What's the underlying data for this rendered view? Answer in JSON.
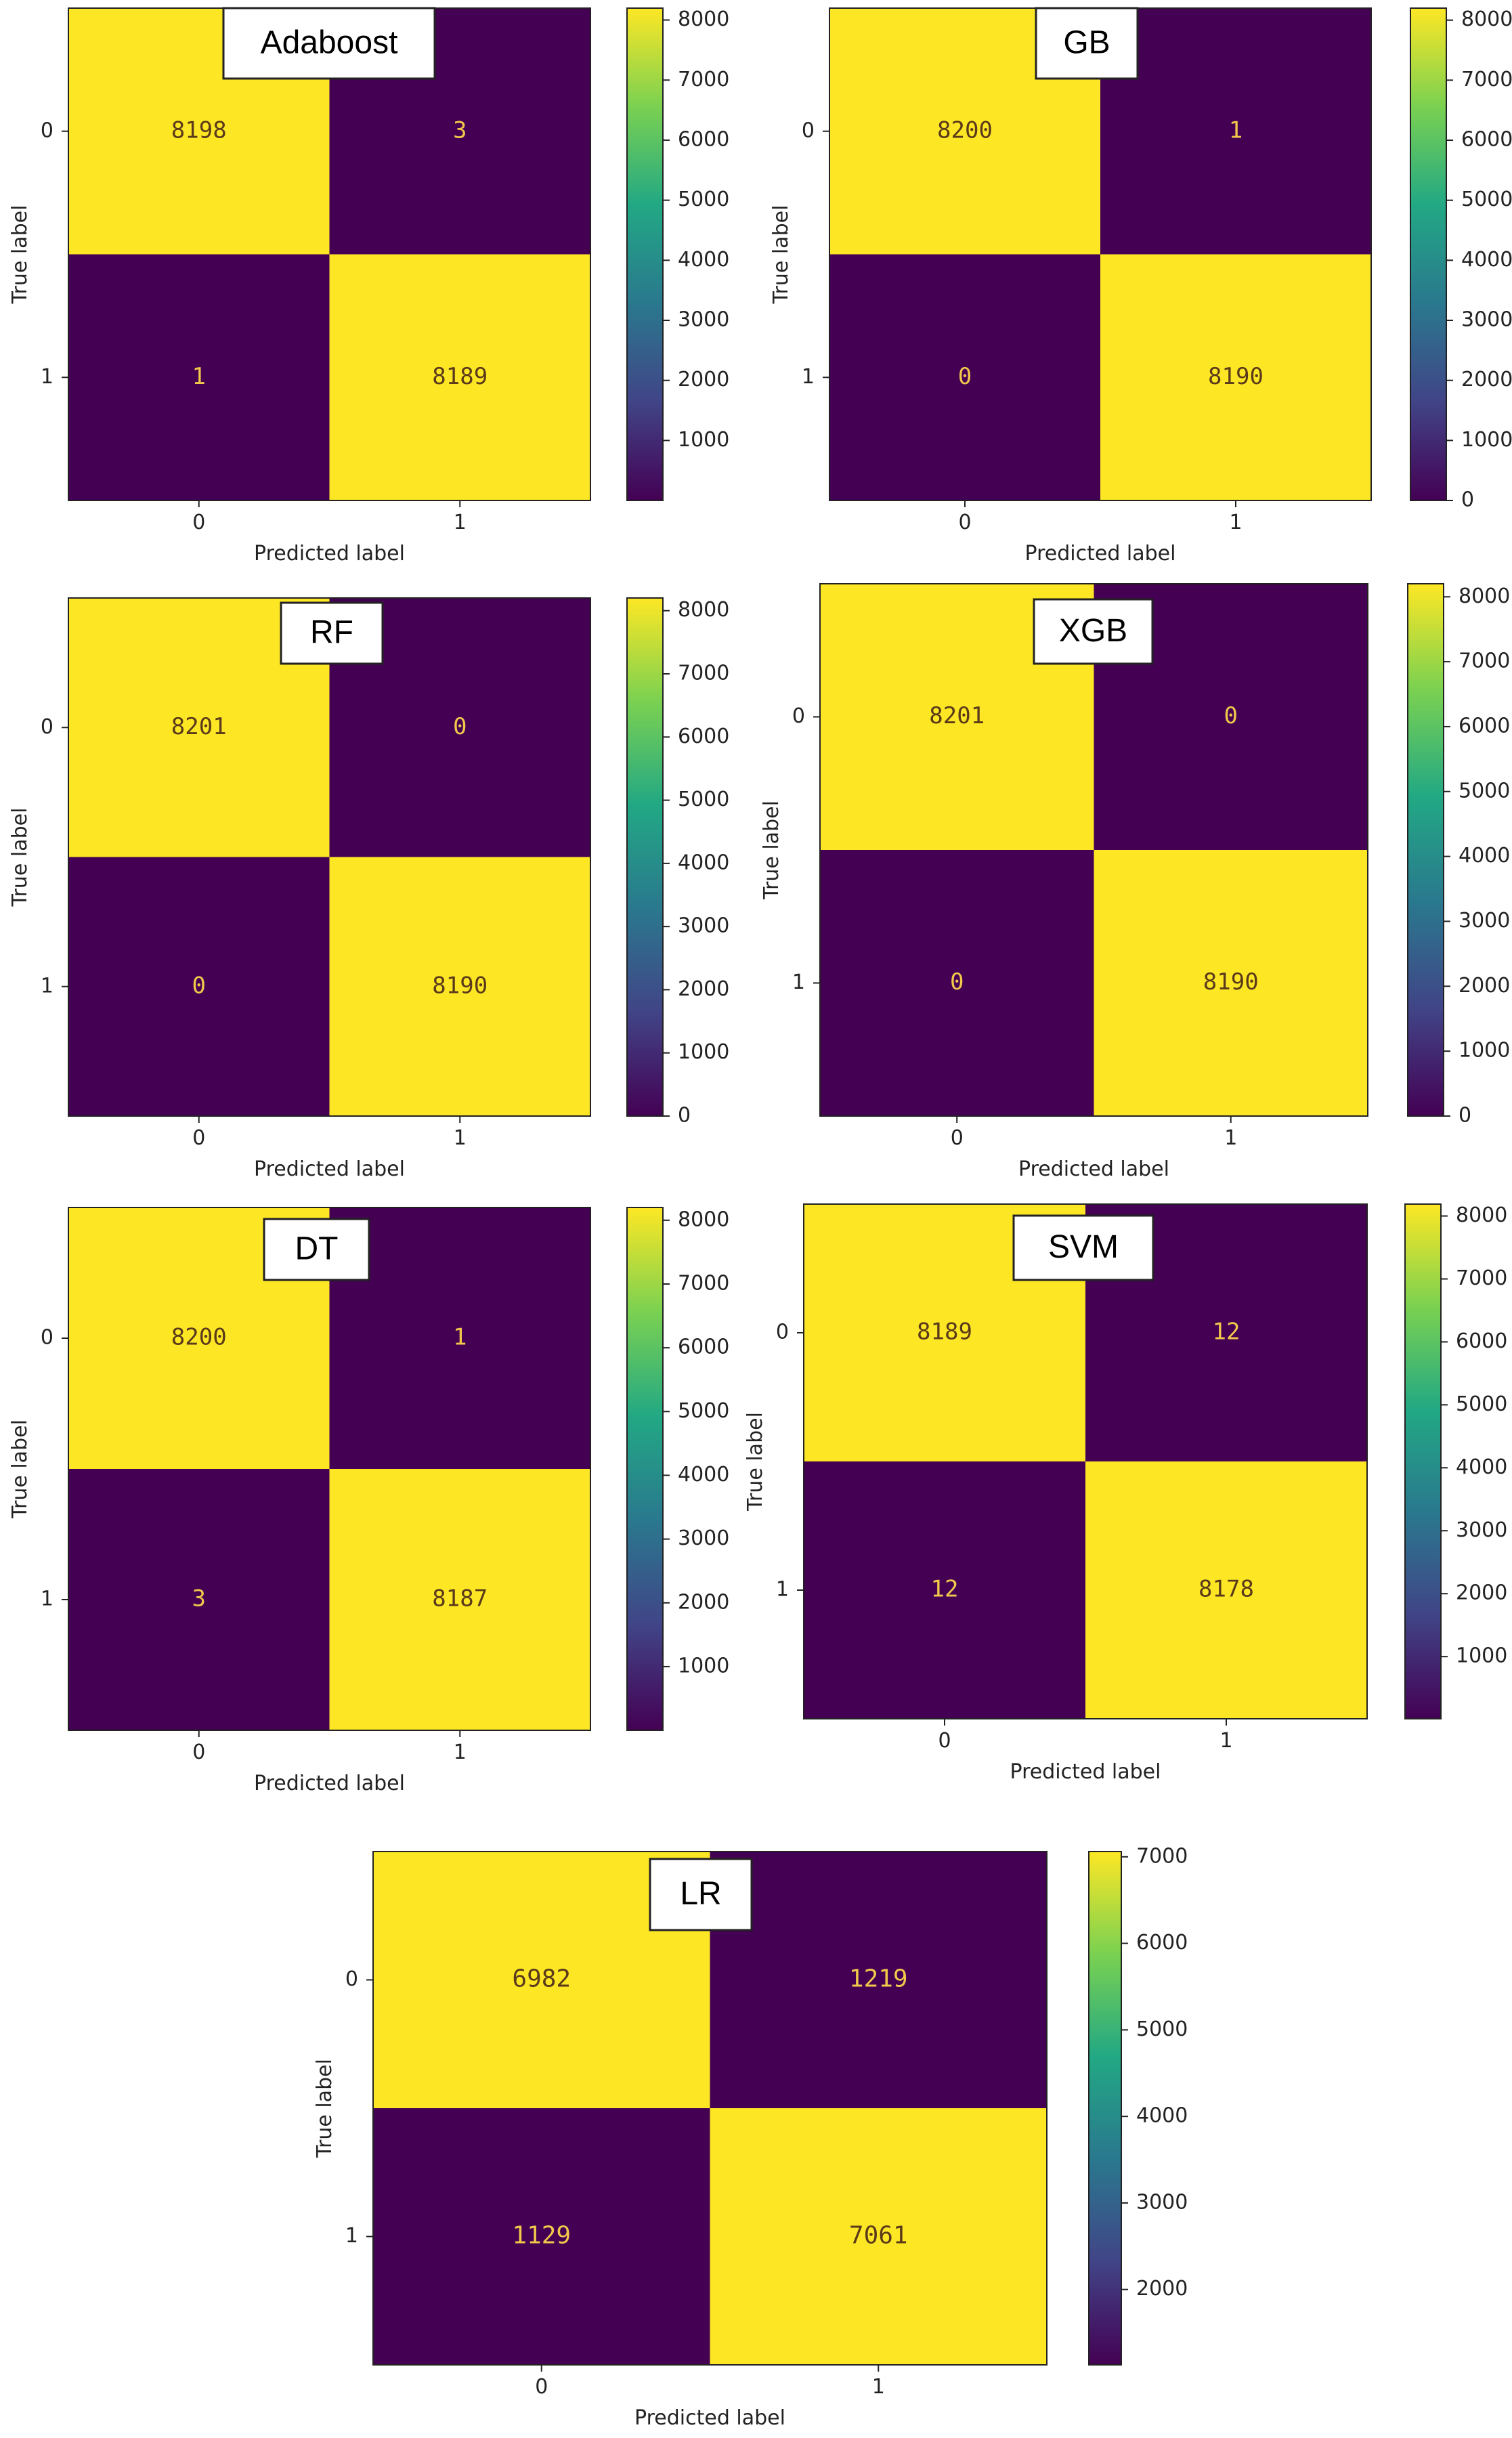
{
  "colors": {
    "high": "#FDE725",
    "low": "#440154",
    "cell_text_on_low": "#F2C84B",
    "cell_text_on_high": "#5A3A1A",
    "colorbar_stops": [
      "#440154",
      "#414487",
      "#2A788E",
      "#22A884",
      "#7AD151",
      "#FDE725"
    ]
  },
  "chart_data": [
    {
      "type": "heatmap",
      "title": "Adaboost",
      "xlabel": "Predicted label",
      "ylabel": "True label",
      "x_ticks": [
        "0",
        "1"
      ],
      "y_ticks": [
        "0",
        "1"
      ],
      "values": [
        [
          8198,
          3
        ],
        [
          1,
          8189
        ]
      ],
      "colorbar": {
        "range": [
          1,
          8198
        ],
        "ticks": [
          1000,
          2000,
          3000,
          4000,
          5000,
          6000,
          7000,
          8000
        ]
      }
    },
    {
      "type": "heatmap",
      "title": "GB",
      "xlabel": "Predicted label",
      "ylabel": "True label",
      "x_ticks": [
        "0",
        "1"
      ],
      "y_ticks": [
        "0",
        "1"
      ],
      "values": [
        [
          8200,
          1
        ],
        [
          0,
          8190
        ]
      ],
      "colorbar": {
        "range": [
          0,
          8200
        ],
        "ticks": [
          0,
          1000,
          2000,
          3000,
          4000,
          5000,
          6000,
          7000,
          8000
        ]
      }
    },
    {
      "type": "heatmap",
      "title": "RF",
      "xlabel": "Predicted label",
      "ylabel": "True label",
      "x_ticks": [
        "0",
        "1"
      ],
      "y_ticks": [
        "0",
        "1"
      ],
      "values": [
        [
          8201,
          0
        ],
        [
          0,
          8190
        ]
      ],
      "colorbar": {
        "range": [
          0,
          8201
        ],
        "ticks": [
          0,
          1000,
          2000,
          3000,
          4000,
          5000,
          6000,
          7000,
          8000
        ]
      }
    },
    {
      "type": "heatmap",
      "title": "XGB",
      "xlabel": "Predicted label",
      "ylabel": "True label",
      "x_ticks": [
        "0",
        "1"
      ],
      "y_ticks": [
        "0",
        "1"
      ],
      "values": [
        [
          8201,
          0
        ],
        [
          0,
          8190
        ]
      ],
      "colorbar": {
        "range": [
          0,
          8201
        ],
        "ticks": [
          0,
          1000,
          2000,
          3000,
          4000,
          5000,
          6000,
          7000,
          8000
        ]
      }
    },
    {
      "type": "heatmap",
      "title": "DT",
      "xlabel": "Predicted label",
      "ylabel": "True label",
      "x_ticks": [
        "0",
        "1"
      ],
      "y_ticks": [
        "0",
        "1"
      ],
      "values": [
        [
          8200,
          1
        ],
        [
          3,
          8187
        ]
      ],
      "colorbar": {
        "range": [
          1,
          8200
        ],
        "ticks": [
          1000,
          2000,
          3000,
          4000,
          5000,
          6000,
          7000,
          8000
        ]
      }
    },
    {
      "type": "heatmap",
      "title": "SVM",
      "xlabel": "Predicted label",
      "ylabel": "True label",
      "x_ticks": [
        "0",
        "1"
      ],
      "y_ticks": [
        "0",
        "1"
      ],
      "values": [
        [
          8189,
          12
        ],
        [
          12,
          8178
        ]
      ],
      "colorbar": {
        "range": [
          12,
          8189
        ],
        "ticks": [
          1000,
          2000,
          3000,
          4000,
          5000,
          6000,
          7000,
          8000
        ]
      }
    },
    {
      "type": "heatmap",
      "title": "LR",
      "xlabel": "Predicted label",
      "ylabel": "True label",
      "x_ticks": [
        "0",
        "1"
      ],
      "y_ticks": [
        "0",
        "1"
      ],
      "values": [
        [
          6982,
          1219
        ],
        [
          1129,
          7061
        ]
      ],
      "colorbar": {
        "range": [
          1129,
          7061
        ],
        "ticks": [
          2000,
          3000,
          4000,
          5000,
          6000,
          7000
        ]
      }
    }
  ]
}
